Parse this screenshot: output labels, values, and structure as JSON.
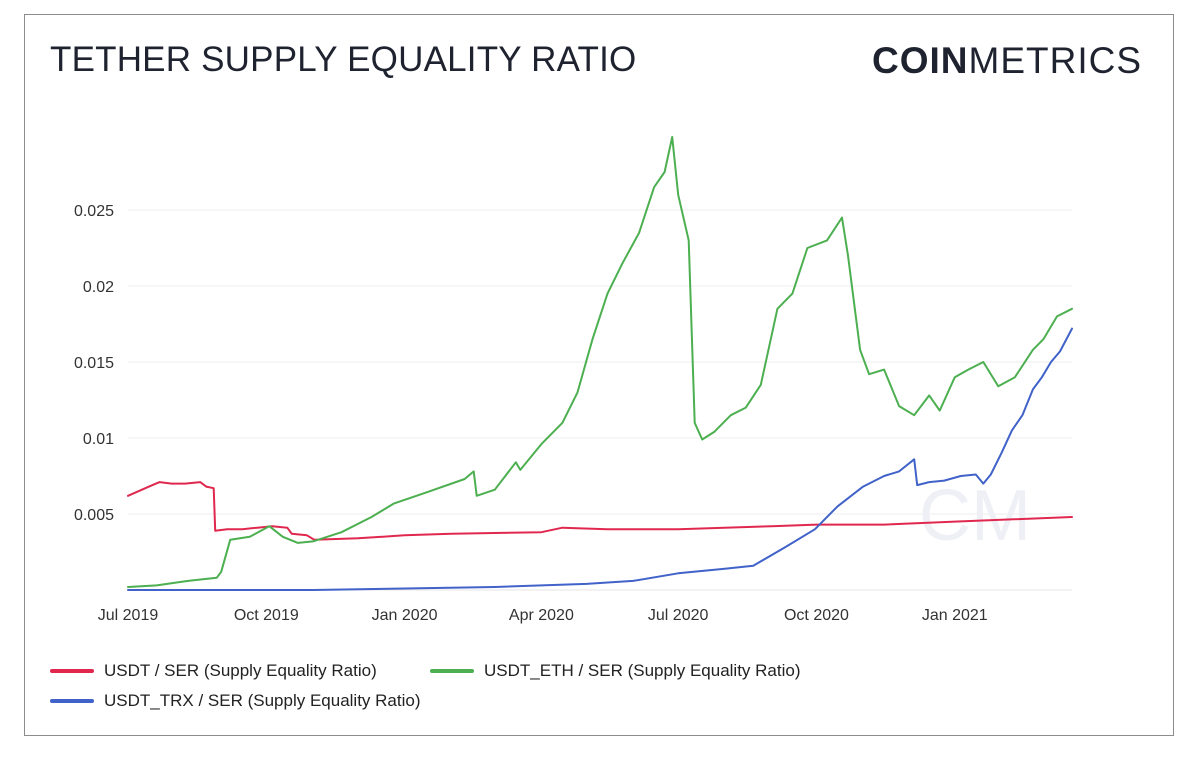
{
  "header": {
    "title": "TETHER SUPPLY EQUALITY RATIO",
    "brand_bold": "COIN",
    "brand_light": "METRICS"
  },
  "chart_data": {
    "type": "line",
    "title": "TETHER SUPPLY EQUALITY RATIO",
    "xlabel": "",
    "ylabel": "",
    "x_type": "date",
    "xlim": [
      "2019-07-01",
      "2021-03-20"
    ],
    "ylim": [
      0.0,
      0.0275
    ],
    "yticks": [
      0.005,
      0.01,
      0.015,
      0.02,
      0.025
    ],
    "ytick_labels": [
      "0.005",
      "0.01",
      "0.015",
      "0.02",
      "0.025"
    ],
    "xticks": [
      "2019-07-01",
      "2019-10-01",
      "2020-01-01",
      "2020-04-01",
      "2020-07-01",
      "2020-10-01",
      "2021-01-01"
    ],
    "xtick_labels": [
      "Jul 2019",
      "Oct 2019",
      "Jan 2020",
      "Apr 2020",
      "Jul 2020",
      "Oct 2020",
      "Jan 2021"
    ],
    "grid": "horizontal",
    "legend": "bottom",
    "watermark": "CM",
    "series": [
      {
        "name": "USDT / SER (Supply Equality Ratio)",
        "color": "#e0284f",
        "points": [
          [
            "2019-07-01",
            0.0062
          ],
          [
            "2019-07-08",
            0.0065
          ],
          [
            "2019-07-15",
            0.0068
          ],
          [
            "2019-07-22",
            0.0071
          ],
          [
            "2019-07-30",
            0.007
          ],
          [
            "2019-08-08",
            0.007
          ],
          [
            "2019-08-18",
            0.0071
          ],
          [
            "2019-08-22",
            0.0068
          ],
          [
            "2019-08-27",
            0.0067
          ],
          [
            "2019-08-28",
            0.0039
          ],
          [
            "2019-09-05",
            0.004
          ],
          [
            "2019-09-15",
            0.004
          ],
          [
            "2019-09-25",
            0.0041
          ],
          [
            "2019-10-05",
            0.0042
          ],
          [
            "2019-10-15",
            0.0041
          ],
          [
            "2019-10-18",
            0.0037
          ],
          [
            "2019-10-28",
            0.0036
          ],
          [
            "2019-11-02",
            0.0033
          ],
          [
            "2019-12-01",
            0.0034
          ],
          [
            "2020-01-01",
            0.0036
          ],
          [
            "2020-02-01",
            0.0037
          ],
          [
            "2020-04-01",
            0.0038
          ],
          [
            "2020-04-15",
            0.0041
          ],
          [
            "2020-05-15",
            0.004
          ],
          [
            "2020-07-01",
            0.004
          ],
          [
            "2020-09-01",
            0.0042
          ],
          [
            "2020-10-01",
            0.0043
          ],
          [
            "2020-11-15",
            0.0043
          ],
          [
            "2021-01-01",
            0.0045
          ],
          [
            "2021-03-20",
            0.0048
          ]
        ]
      },
      {
        "name": "USDT_ETH / SER (Supply Equality Ratio)",
        "color": "#4caf50",
        "points": [
          [
            "2019-07-01",
            0.0002
          ],
          [
            "2019-07-20",
            0.0003
          ],
          [
            "2019-08-10",
            0.0006
          ],
          [
            "2019-08-29",
            0.0008
          ],
          [
            "2019-09-01",
            0.0012
          ],
          [
            "2019-09-07",
            0.0033
          ],
          [
            "2019-09-20",
            0.0035
          ],
          [
            "2019-10-03",
            0.0042
          ],
          [
            "2019-10-12",
            0.0035
          ],
          [
            "2019-10-22",
            0.0031
          ],
          [
            "2019-11-01",
            0.0032
          ],
          [
            "2019-11-20",
            0.0038
          ],
          [
            "2019-12-10",
            0.0048
          ],
          [
            "2019-12-25",
            0.0057
          ],
          [
            "2020-01-15",
            0.0064
          ],
          [
            "2020-02-10",
            0.0073
          ],
          [
            "2020-02-16",
            0.0078
          ],
          [
            "2020-02-18",
            0.0062
          ],
          [
            "2020-03-01",
            0.0066
          ],
          [
            "2020-03-15",
            0.0084
          ],
          [
            "2020-03-18",
            0.0079
          ],
          [
            "2020-04-01",
            0.0096
          ],
          [
            "2020-04-15",
            0.011
          ],
          [
            "2020-04-25",
            0.013
          ],
          [
            "2020-05-05",
            0.0165
          ],
          [
            "2020-05-15",
            0.0195
          ],
          [
            "2020-05-25",
            0.0215
          ],
          [
            "2020-06-05",
            0.0235
          ],
          [
            "2020-06-15",
            0.0265
          ],
          [
            "2020-06-22",
            0.0275
          ],
          [
            "2020-06-27",
            0.0298
          ],
          [
            "2020-07-01",
            0.026
          ],
          [
            "2020-07-08",
            0.023
          ],
          [
            "2020-07-12",
            0.011
          ],
          [
            "2020-07-17",
            0.0099
          ],
          [
            "2020-07-25",
            0.0104
          ],
          [
            "2020-08-05",
            0.0115
          ],
          [
            "2020-08-15",
            0.012
          ],
          [
            "2020-08-25",
            0.0135
          ],
          [
            "2020-09-05",
            0.0185
          ],
          [
            "2020-09-15",
            0.0195
          ],
          [
            "2020-09-25",
            0.0225
          ],
          [
            "2020-10-08",
            0.023
          ],
          [
            "2020-10-18",
            0.0245
          ],
          [
            "2020-10-22",
            0.022
          ],
          [
            "2020-10-30",
            0.0158
          ],
          [
            "2020-11-05",
            0.0142
          ],
          [
            "2020-11-15",
            0.0145
          ],
          [
            "2020-11-25",
            0.0121
          ],
          [
            "2020-12-05",
            0.0115
          ],
          [
            "2020-12-15",
            0.0128
          ],
          [
            "2020-12-22",
            0.0118
          ],
          [
            "2021-01-01",
            0.014
          ],
          [
            "2021-01-10",
            0.0145
          ],
          [
            "2021-01-20",
            0.015
          ],
          [
            "2021-01-30",
            0.0134
          ],
          [
            "2021-02-10",
            0.014
          ],
          [
            "2021-02-22",
            0.0158
          ],
          [
            "2021-03-01",
            0.0165
          ],
          [
            "2021-03-10",
            0.018
          ],
          [
            "2021-03-20",
            0.0185
          ]
        ]
      },
      {
        "name": "USDT_TRX / SER (Supply Equality Ratio)",
        "color": "#4062c9",
        "points": [
          [
            "2019-07-01",
            0.0
          ],
          [
            "2019-09-01",
            0.0
          ],
          [
            "2019-11-01",
            0.0
          ],
          [
            "2020-01-01",
            0.0001
          ],
          [
            "2020-03-01",
            0.0002
          ],
          [
            "2020-05-01",
            0.0004
          ],
          [
            "2020-06-01",
            0.0006
          ],
          [
            "2020-07-01",
            0.0011
          ],
          [
            "2020-08-01",
            0.0014
          ],
          [
            "2020-08-20",
            0.0016
          ],
          [
            "2020-09-10",
            0.0028
          ],
          [
            "2020-09-30",
            0.004
          ],
          [
            "2020-10-15",
            0.0055
          ],
          [
            "2020-11-01",
            0.0068
          ],
          [
            "2020-11-15",
            0.0075
          ],
          [
            "2020-11-25",
            0.0078
          ],
          [
            "2020-12-05",
            0.0086
          ],
          [
            "2020-12-07",
            0.0069
          ],
          [
            "2020-12-15",
            0.0071
          ],
          [
            "2020-12-25",
            0.0072
          ],
          [
            "2021-01-05",
            0.0075
          ],
          [
            "2021-01-15",
            0.0076
          ],
          [
            "2021-01-20",
            0.007
          ],
          [
            "2021-01-25",
            0.0076
          ],
          [
            "2021-02-01",
            0.009
          ],
          [
            "2021-02-08",
            0.0105
          ],
          [
            "2021-02-15",
            0.0115
          ],
          [
            "2021-02-22",
            0.0132
          ],
          [
            "2021-02-28",
            0.014
          ],
          [
            "2021-03-06",
            0.015
          ],
          [
            "2021-03-12",
            0.0157
          ],
          [
            "2021-03-20",
            0.0172
          ]
        ]
      }
    ]
  }
}
